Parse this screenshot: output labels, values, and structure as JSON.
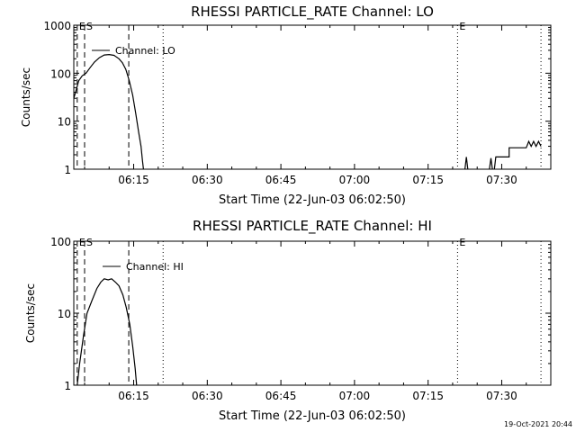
{
  "chart_data": [
    {
      "type": "line",
      "title": "RHESSI PARTICLE_RATE Channel: LO",
      "xlabel": "Start Time (22-Jun-03 06:02:50)",
      "ylabel": "Counts/sec",
      "yscale": "log",
      "ylim": [
        1,
        1000
      ],
      "ytick_values": [
        1,
        10,
        100,
        1000
      ],
      "ytick_labels": [
        "1",
        "10",
        "100",
        "1000"
      ],
      "xlim_minutes": [
        62.8,
        160.0
      ],
      "xtick_values": [
        75,
        90,
        105,
        120,
        135,
        150
      ],
      "xtick_labels": [
        "06:15",
        "06:30",
        "06:45",
        "07:00",
        "07:15",
        "07:30"
      ],
      "legend": "Channel: LO",
      "markers": [
        {
          "label": "E",
          "x": 63.5,
          "style": "dashed"
        },
        {
          "label": "S",
          "x": 65.0,
          "style": "dashed"
        },
        {
          "label": "",
          "x": 74.0,
          "style": "dashed"
        },
        {
          "label": "",
          "x": 81.0,
          "style": "dotted"
        },
        {
          "label": "E",
          "x": 141.0,
          "style": "dotted"
        },
        {
          "label": "",
          "x": 158.0,
          "style": "dotted"
        }
      ],
      "series": [
        {
          "name": "Channel: LO",
          "segments": [
            [
              [
                62.8,
                30
              ],
              [
                63.3,
                45
              ],
              [
                63.8,
                70
              ],
              [
                64.5,
                88
              ],
              [
                65.3,
                100
              ],
              [
                66.1,
                130
              ],
              [
                67,
                170
              ],
              [
                68,
                210
              ],
              [
                69,
                240
              ],
              [
                70,
                245
              ],
              [
                71,
                235
              ],
              [
                72,
                200
              ],
              [
                72.7,
                165
              ],
              [
                73.4,
                120
              ],
              [
                74.1,
                70
              ],
              [
                74.8,
                35
              ],
              [
                75.4,
                15
              ],
              [
                76,
                6
              ],
              [
                76.5,
                3
              ],
              [
                76.8,
                1.5
              ],
              [
                77,
                1
              ]
            ],
            [
              [
                142.5,
                1
              ],
              [
                142.8,
                1.8
              ],
              [
                143.1,
                1
              ]
            ],
            [
              [
                147.5,
                1
              ],
              [
                147.8,
                1.7
              ],
              [
                148.1,
                1
              ]
            ],
            [
              [
                148.5,
                1
              ],
              [
                148.8,
                1.8
              ],
              [
                149.2,
                1.8
              ],
              [
                151.5,
                1.8
              ],
              [
                151.5,
                2.8
              ],
              [
                155,
                2.8
              ],
              [
                155.5,
                3.8
              ],
              [
                156,
                3
              ],
              [
                156.5,
                3.8
              ],
              [
                157,
                3
              ],
              [
                157.5,
                3.8
              ],
              [
                158,
                3
              ]
            ]
          ]
        }
      ]
    },
    {
      "type": "line",
      "title": "RHESSI PARTICLE_RATE Channel: HI",
      "xlabel": "Start Time (22-Jun-03 06:02:50)",
      "ylabel": "Counts/sec",
      "yscale": "log",
      "ylim": [
        1,
        100
      ],
      "ytick_values": [
        1,
        10,
        100
      ],
      "ytick_labels": [
        "1",
        "10",
        "100"
      ],
      "xlim_minutes": [
        62.8,
        160.0
      ],
      "xtick_values": [
        75,
        90,
        105,
        120,
        135,
        150
      ],
      "xtick_labels": [
        "06:15",
        "06:30",
        "06:45",
        "07:00",
        "07:15",
        "07:30"
      ],
      "legend": "Channel: HI",
      "markers": [
        {
          "label": "E",
          "x": 63.5,
          "style": "dashed"
        },
        {
          "label": "S",
          "x": 65.0,
          "style": "dashed"
        },
        {
          "label": "",
          "x": 74.0,
          "style": "dashed"
        },
        {
          "label": "",
          "x": 81.0,
          "style": "dotted"
        },
        {
          "label": "E",
          "x": 141.0,
          "style": "dotted"
        },
        {
          "label": "",
          "x": 158.0,
          "style": "dotted"
        }
      ],
      "series": [
        {
          "name": "Channel: HI",
          "segments": [
            [
              [
                63.5,
                1
              ],
              [
                64,
                2
              ],
              [
                64.8,
                5
              ],
              [
                65.5,
                10
              ],
              [
                66.5,
                15
              ],
              [
                67.5,
                22
              ],
              [
                68.3,
                27
              ],
              [
                69,
                30
              ],
              [
                69.8,
                29
              ],
              [
                70.5,
                30
              ],
              [
                71.3,
                27
              ],
              [
                72,
                24
              ],
              [
                72.8,
                18
              ],
              [
                73.5,
                12
              ],
              [
                74.2,
                7
              ],
              [
                74.8,
                3.5
              ],
              [
                75.3,
                1.7
              ],
              [
                75.6,
                1
              ]
            ]
          ]
        }
      ]
    }
  ],
  "footer_timestamp": "19-Oct-2021 20:44"
}
